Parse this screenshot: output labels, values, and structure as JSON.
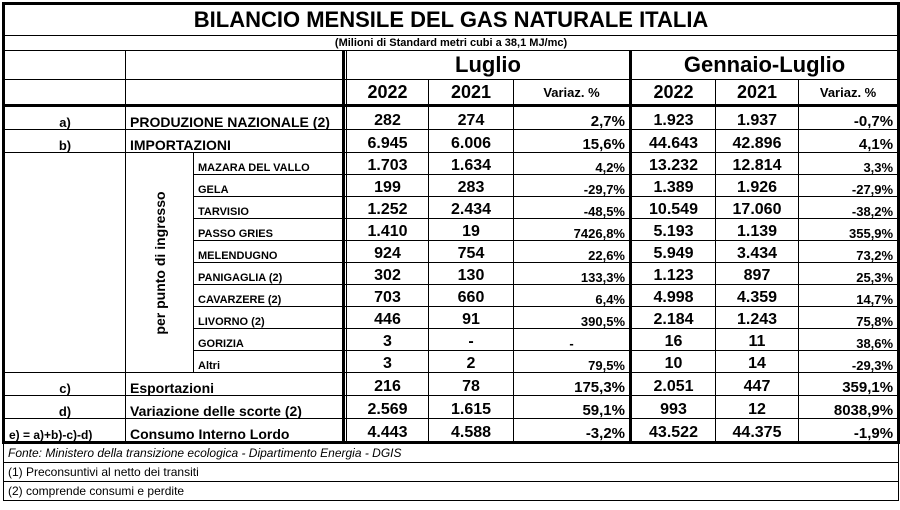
{
  "title": "BILANCIO MENSILE DEL GAS NATURALE ITALIA",
  "subtitle": "(Milioni di Standard metri cubi a 38,1 MJ/mc)",
  "period_month": "Luglio",
  "period_range": "Gennaio-Luglio",
  "year_current": "2022",
  "year_previous": "2021",
  "var_label": "Variaz. %",
  "vertical_label": "per punto di ingresso",
  "rows_top": [
    {
      "code": "a)",
      "label": "PRODUZIONE NAZIONALE (2)",
      "m22": "282",
      "m21": "274",
      "mvar": "2,7%",
      "y22": "1.923",
      "y21": "1.937",
      "yvar": "-0,7%"
    },
    {
      "code": "b)",
      "label": "IMPORTAZIONI",
      "m22": "6.945",
      "m21": "6.006",
      "mvar": "15,6%",
      "y22": "44.643",
      "y21": "42.896",
      "yvar": "4,1%"
    }
  ],
  "entry_points": [
    {
      "label": "MAZARA DEL VALLO",
      "m22": "1.703",
      "m21": "1.634",
      "mvar": "4,2%",
      "y22": "13.232",
      "y21": "12.814",
      "yvar": "3,3%"
    },
    {
      "label": "GELA",
      "m22": "199",
      "m21": "283",
      "mvar": "-29,7%",
      "y22": "1.389",
      "y21": "1.926",
      "yvar": "-27,9%"
    },
    {
      "label": "TARVISIO",
      "m22": "1.252",
      "m21": "2.434",
      "mvar": "-48,5%",
      "y22": "10.549",
      "y21": "17.060",
      "yvar": "-38,2%"
    },
    {
      "label": "PASSO GRIES",
      "m22": "1.410",
      "m21": "19",
      "mvar": "7426,8%",
      "y22": "5.193",
      "y21": "1.139",
      "yvar": "355,9%"
    },
    {
      "label": "MELENDUGNO",
      "m22": "924",
      "m21": "754",
      "mvar": "22,6%",
      "y22": "5.949",
      "y21": "3.434",
      "yvar": "73,2%"
    },
    {
      "label": "PANIGAGLIA (2)",
      "m22": "302",
      "m21": "130",
      "mvar": "133,3%",
      "y22": "1.123",
      "y21": "897",
      "yvar": "25,3%"
    },
    {
      "label": "CAVARZERE (2)",
      "m22": "703",
      "m21": "660",
      "mvar": "6,4%",
      "y22": "4.998",
      "y21": "4.359",
      "yvar": "14,7%"
    },
    {
      "label": "LIVORNO (2)",
      "m22": "446",
      "m21": "91",
      "mvar": "390,5%",
      "y22": "2.184",
      "y21": "1.243",
      "yvar": "75,8%"
    },
    {
      "label": "GORIZIA",
      "m22": "3",
      "m21": "-",
      "mvar": "-",
      "y22": "16",
      "y21": "11",
      "yvar": "38,6%"
    },
    {
      "label": "Altri",
      "m22": "3",
      "m21": "2",
      "mvar": "79,5%",
      "y22": "10",
      "y21": "14",
      "yvar": "-29,3%"
    }
  ],
  "rows_bottom": [
    {
      "code": "c)",
      "label": "Esportazioni",
      "m22": "216",
      "m21": "78",
      "mvar": "175,3%",
      "y22": "2.051",
      "y21": "447",
      "yvar": "359,1%"
    },
    {
      "code": "d)",
      "label": "Variazione delle scorte (2)",
      "m22": "2.569",
      "m21": "1.615",
      "mvar": "59,1%",
      "y22": "993",
      "y21": "12",
      "yvar": "8038,9%"
    },
    {
      "code": "e) = a)+b)-c)-d)",
      "label": "Consumo Interno Lordo",
      "m22": "4.443",
      "m21": "4.588",
      "mvar": "-3,2%",
      "y22": "43.522",
      "y21": "44.375",
      "yvar": "-1,9%"
    }
  ],
  "footnotes": {
    "source": "Fonte: Ministero della transizione ecologica - Dipartimento Energia - DGIS",
    "note1": "(1) Preconsuntivi al netto dei transiti",
    "note2": "(2) comprende consumi e perdite"
  }
}
